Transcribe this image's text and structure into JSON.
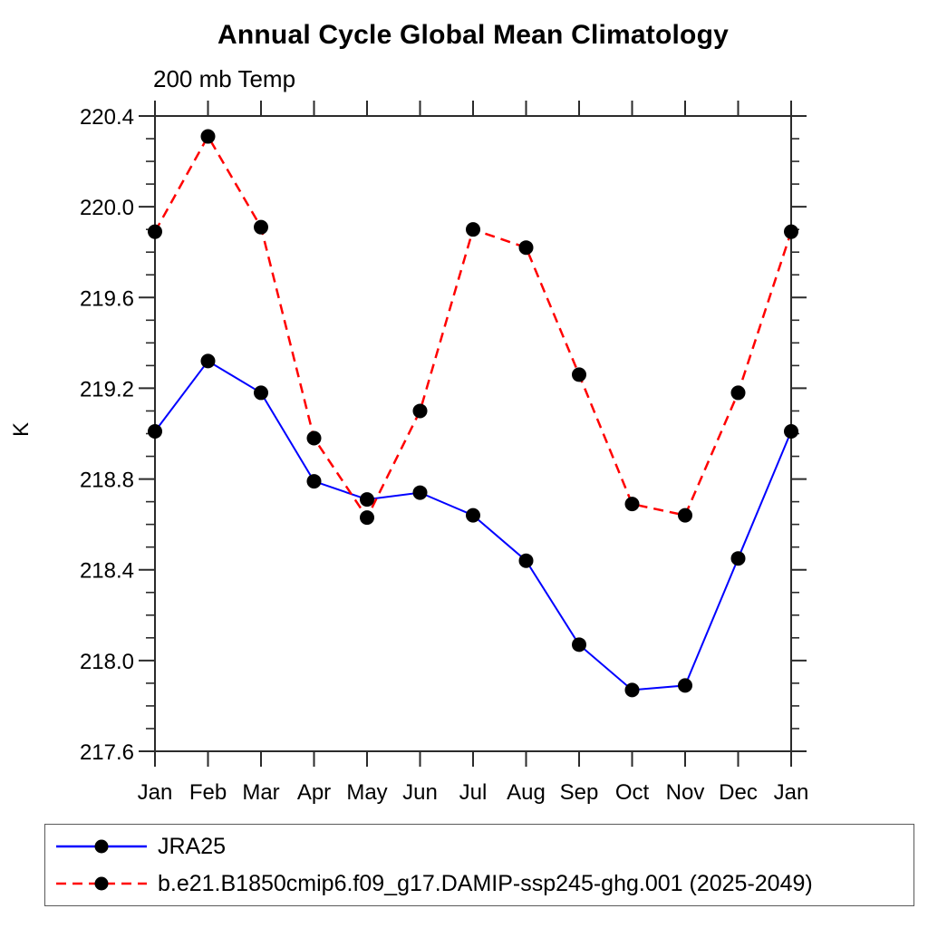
{
  "title": "Annual Cycle Global Mean Climatology",
  "subtitle": "200 mb Temp",
  "ylabel": "K",
  "chart_data": {
    "type": "line",
    "categories": [
      "Jan",
      "Feb",
      "Mar",
      "Apr",
      "May",
      "Jun",
      "Jul",
      "Aug",
      "Sep",
      "Oct",
      "Nov",
      "Dec",
      "Jan"
    ],
    "xlabel": "",
    "ylabel": "K",
    "ylim": [
      217.6,
      220.4
    ],
    "ytick_major_step": 0.4,
    "ytick_minor_step": 0.1,
    "ytick_labels": [
      "220.4",
      "220.0",
      "219.6",
      "219.2",
      "218.8",
      "218.4",
      "218.0",
      "217.6"
    ],
    "grid": false,
    "legend_position": "bottom-left-box",
    "marker": "filled-circle",
    "marker_color": "#000000",
    "axis_color": "#2b2b2b",
    "series": [
      {
        "name": "JRA25",
        "color": "#0000ff",
        "line_style": "solid",
        "values": [
          219.01,
          219.32,
          219.18,
          218.79,
          218.71,
          218.74,
          218.64,
          218.44,
          218.07,
          217.87,
          217.89,
          218.45,
          219.01
        ]
      },
      {
        "name": "b.e21.B1850cmip6.f09_g17.DAMIP-ssp245-ghg.001 (2025-2049)",
        "color": "#ff0000",
        "line_style": "dashed",
        "values": [
          219.89,
          220.31,
          219.91,
          218.98,
          218.63,
          219.1,
          219.9,
          219.82,
          219.26,
          218.69,
          218.64,
          219.18,
          219.89
        ]
      }
    ]
  }
}
